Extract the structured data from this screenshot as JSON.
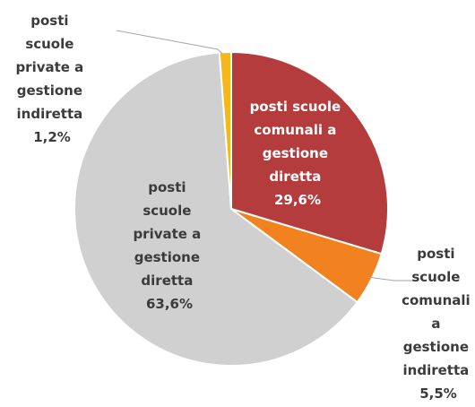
{
  "chart_data": {
    "type": "pie",
    "title": "",
    "slices": [
      {
        "label": "posti scuole comunali a gestione diretta",
        "value_label": "29,6%",
        "value": 29.6,
        "color": "#b53c3c",
        "label_theme": "light"
      },
      {
        "label": "posti scuole comunali a gestione indiretta",
        "value_label": "5,5%",
        "value": 5.5,
        "color": "#f28220",
        "label_theme": "dark"
      },
      {
        "label": "posti scuole private a gestione diretta",
        "value_label": "63,6%",
        "value": 63.6,
        "color": "#d0d0d0",
        "label_theme": "dark"
      },
      {
        "label": "posti scuole private a gestione indiretta",
        "value_label": "1,2%",
        "value": 1.2,
        "color": "#f5b818",
        "label_theme": "dark"
      }
    ]
  }
}
